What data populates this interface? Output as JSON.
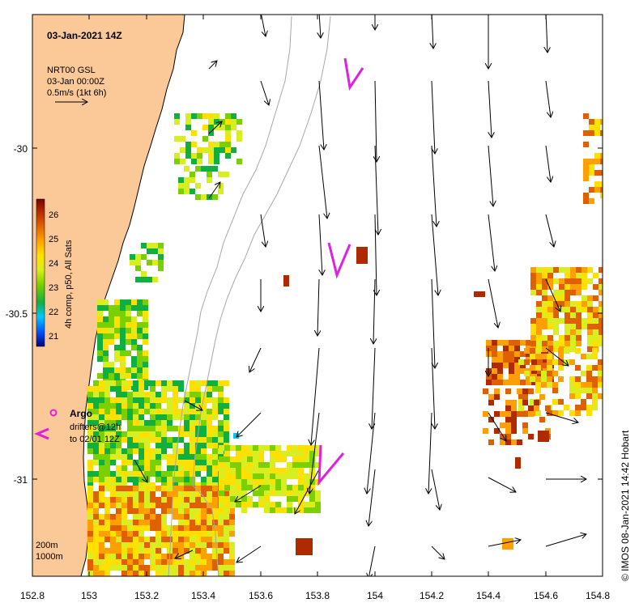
{
  "title": "03-Jan-2021 14Z",
  "legend": {
    "product": "NRT00 GSL",
    "time": "03-Jan 00:00Z",
    "scale": "0.5m/s (1kt 6h)"
  },
  "colorbar": {
    "label": "4h comp, p50, All Sats",
    "ticks": [
      "21",
      "22",
      "23",
      "24",
      "25",
      "26"
    ],
    "colors": [
      "#00007f",
      "#0055ff",
      "#00c8ff",
      "#10b040",
      "#7ad000",
      "#d8ee20",
      "#ffe000",
      "#ffa000",
      "#e06000",
      "#b02a00",
      "#7a0000"
    ]
  },
  "argo": {
    "label": "Argo",
    "color": "#e020e0"
  },
  "drifters": {
    "line1": "drifters@12h",
    "line2": "to 02/01 12Z"
  },
  "depth_labels": {
    "d200": "200m",
    "d1000": "1000m"
  },
  "x_axis": {
    "ticks": [
      "152.8",
      "153",
      "153.2",
      "153.4",
      "153.6",
      "153.8",
      "154",
      "154.2",
      "154.4",
      "154.6",
      "154.8"
    ]
  },
  "y_axis": {
    "ticks": [
      "-30",
      "-30.5",
      "-31"
    ]
  },
  "credit": "© IMOS 08-Jan-2021 14:42 Hobart",
  "colors": {
    "land": "#fbc898",
    "coast": "#000000",
    "isobath": "#a8a8a8",
    "arrow": "#000000"
  },
  "chart_data": {
    "type": "map",
    "lon_range": [
      152.8,
      154.8
    ],
    "lat_range": [
      -31.3,
      -29.6
    ],
    "sst_range_c": [
      20.5,
      26.5
    ]
  }
}
